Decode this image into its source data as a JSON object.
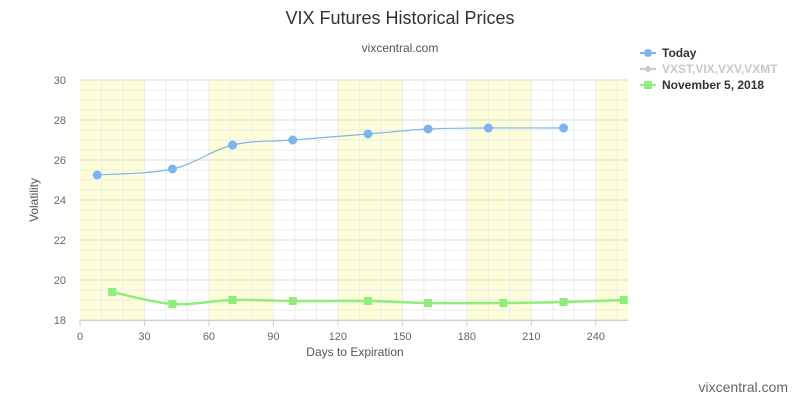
{
  "title": "VIX Futures Historical Prices",
  "subtitle": "vixcentral.com",
  "credit": "vixcentral.com",
  "chart_data": {
    "type": "line",
    "xlabel": "Days to Expiration",
    "ylabel": "Volatility",
    "xlim": [
      0,
      255
    ],
    "ylim": [
      18,
      30
    ],
    "x_ticks": [
      "0",
      "30",
      "60",
      "90",
      "120",
      "150",
      "180",
      "210",
      "240"
    ],
    "y_ticks": [
      "18",
      "20",
      "22",
      "24",
      "26",
      "28",
      "30"
    ],
    "shaded_bands": [
      [
        0,
        30
      ],
      [
        60,
        90
      ],
      [
        120,
        150
      ],
      [
        180,
        210
      ],
      [
        240,
        255
      ]
    ],
    "grid": true,
    "legend": "top-right",
    "series": [
      {
        "name": "Today",
        "color": "#7cb5ec",
        "marker": "circle",
        "x": [
          8,
          43,
          71,
          99,
          134,
          162,
          190,
          225
        ],
        "y": [
          25.25,
          25.55,
          26.75,
          27.0,
          27.3,
          27.55,
          27.6,
          27.6
        ]
      },
      {
        "name": "VXST,VIX,VXV,VXMT",
        "color": "#cccccc",
        "marker": "diamond",
        "hidden": true,
        "x": [],
        "y": []
      },
      {
        "name": "November 5, 2018",
        "color": "#90ed7d",
        "marker": "square",
        "x": [
          15,
          43,
          71,
          99,
          134,
          162,
          197,
          225,
          253
        ],
        "y": [
          19.4,
          18.8,
          19.0,
          18.95,
          18.95,
          18.85,
          18.85,
          18.9,
          19.0
        ]
      }
    ]
  }
}
